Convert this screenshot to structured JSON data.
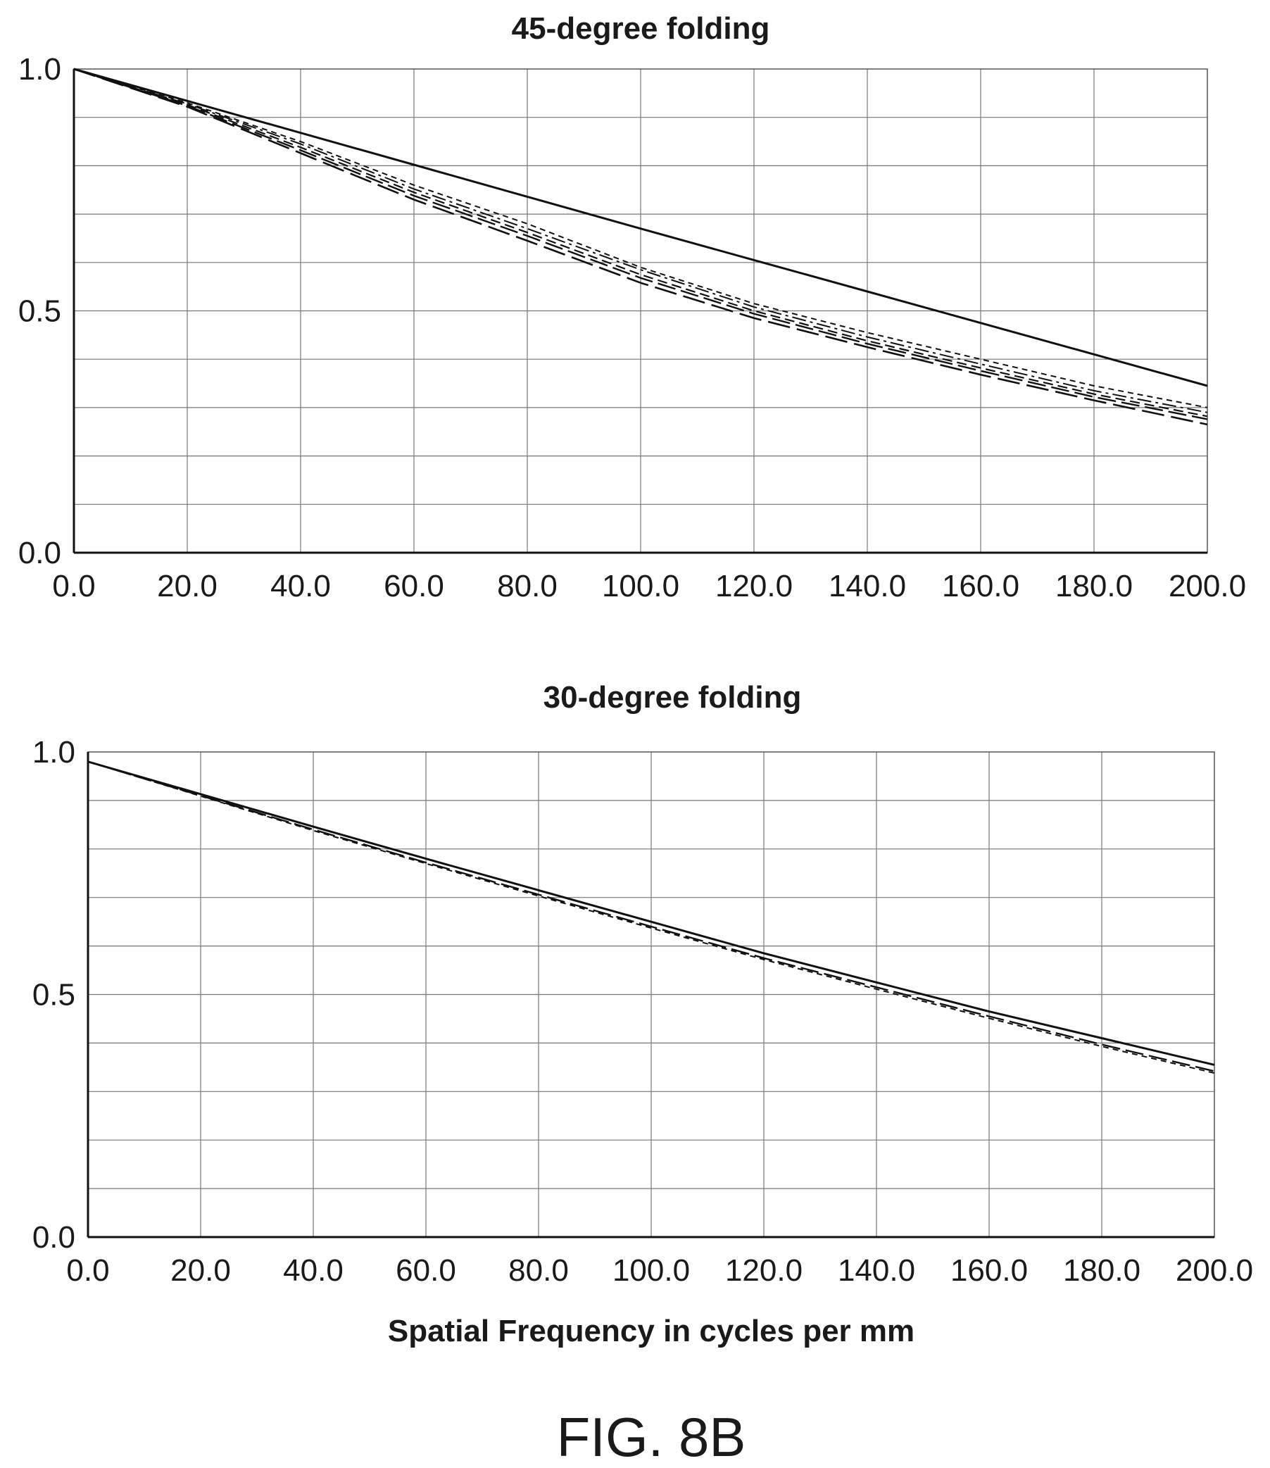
{
  "figure": {
    "caption": "FIG. 8B",
    "xlabel": "Spatial Frequency in cycles per mm"
  },
  "chart_data": [
    {
      "type": "line",
      "title": "45-degree folding",
      "xlabel": "",
      "ylabel": "",
      "xlim": [
        0,
        200
      ],
      "ylim": [
        0,
        1
      ],
      "x_ticks": [
        "0.0",
        "20.0",
        "40.0",
        "60.0",
        "80.0",
        "100.0",
        "120.0",
        "140.0",
        "160.0",
        "180.0",
        "200.0"
      ],
      "y_ticks": [
        "0.0",
        "0.5",
        "1.0"
      ],
      "grid": true,
      "x": [
        0,
        20,
        40,
        60,
        80,
        100,
        120,
        140,
        160,
        180,
        200
      ],
      "series": [
        {
          "style": "solid",
          "values": [
            1.0,
            0.934,
            0.868,
            0.802,
            0.736,
            0.67,
            0.605,
            0.54,
            0.475,
            0.41,
            0.345
          ]
        },
        {
          "style": "short-dash",
          "values": [
            1.0,
            0.93,
            0.85,
            0.76,
            0.68,
            0.59,
            0.515,
            0.455,
            0.4,
            0.345,
            0.3
          ]
        },
        {
          "style": "dash-dot",
          "values": [
            1.0,
            0.928,
            0.845,
            0.752,
            0.67,
            0.585,
            0.508,
            0.446,
            0.39,
            0.335,
            0.29
          ]
        },
        {
          "style": "medium-dash",
          "values": [
            1.0,
            0.926,
            0.838,
            0.745,
            0.662,
            0.575,
            0.5,
            0.438,
            0.382,
            0.328,
            0.282
          ]
        },
        {
          "style": "long-dash",
          "values": [
            1.0,
            0.924,
            0.832,
            0.738,
            0.655,
            0.568,
            0.494,
            0.432,
            0.376,
            0.322,
            0.276
          ]
        },
        {
          "style": "long-dash-2",
          "values": [
            1.0,
            0.922,
            0.826,
            0.73,
            0.645,
            0.558,
            0.485,
            0.425,
            0.368,
            0.315,
            0.265
          ]
        }
      ]
    },
    {
      "type": "line",
      "title": "30-degree folding",
      "xlabel": "Spatial Frequency in cycles per mm",
      "ylabel": "",
      "xlim": [
        0,
        200
      ],
      "ylim": [
        0,
        1
      ],
      "x_ticks": [
        "0.0",
        "20.0",
        "40.0",
        "60.0",
        "80.0",
        "100.0",
        "120.0",
        "140.0",
        "160.0",
        "180.0",
        "200.0"
      ],
      "y_ticks": [
        "0.0",
        "0.5",
        "1.0"
      ],
      "grid": true,
      "x": [
        0,
        20,
        40,
        60,
        80,
        100,
        120,
        140,
        160,
        180,
        200
      ],
      "series": [
        {
          "style": "solid",
          "values": [
            0.98,
            0.913,
            0.846,
            0.78,
            0.715,
            0.65,
            0.585,
            0.525,
            0.465,
            0.41,
            0.355
          ]
        },
        {
          "style": "long-dash",
          "values": [
            0.98,
            0.91,
            0.84,
            0.772,
            0.706,
            0.64,
            0.575,
            0.515,
            0.455,
            0.397,
            0.342
          ]
        },
        {
          "style": "short-dash",
          "values": [
            0.98,
            0.909,
            0.838,
            0.77,
            0.703,
            0.637,
            0.572,
            0.511,
            0.451,
            0.393,
            0.338
          ]
        }
      ]
    }
  ]
}
